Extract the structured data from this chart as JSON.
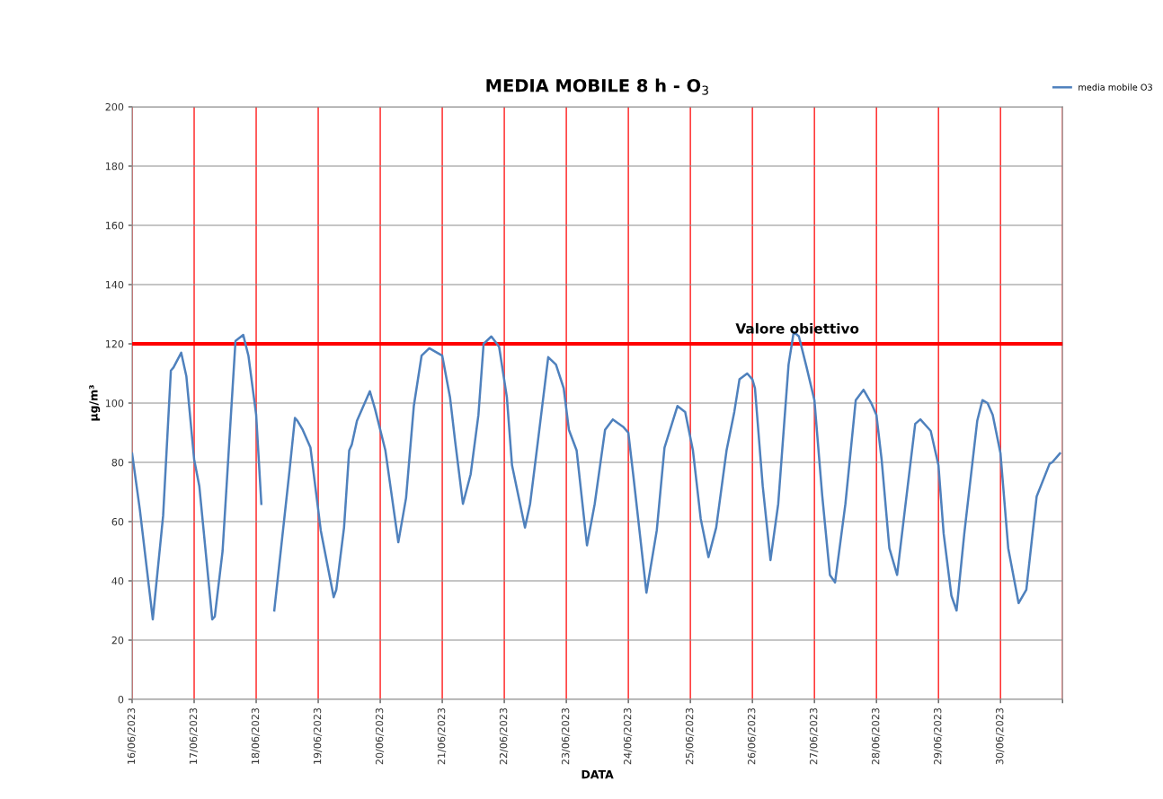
{
  "chart_data": {
    "type": "line",
    "title": "MEDIA MOBILE 8 h - O$_{3}$",
    "xlabel": "DATA",
    "ylabel": "µg/m³",
    "x": [
      "2023-06-16T00:00",
      "2023-06-16T03:00",
      "2023-06-16T08:00",
      "2023-06-16T12:00",
      "2023-06-16T15:00",
      "2023-06-16T16:00",
      "2023-06-16T19:00",
      "2023-06-16T21:00",
      "2023-06-17T00:00",
      "2023-06-17T02:00",
      "2023-06-17T07:00",
      "2023-06-17T08:00",
      "2023-06-17T11:00",
      "2023-06-17T16:00",
      "2023-06-17T19:00",
      "2023-06-17T21:00",
      "2023-06-18T00:00",
      "2023-06-18T02:00",
      "2023-06-18T04:00",
      "2023-06-18T07:00",
      "2023-06-18T13:00",
      "2023-06-18T15:00",
      "2023-06-18T16:00",
      "2023-06-18T18:00",
      "2023-06-18T21:00",
      "2023-06-18T22:00",
      "2023-06-19T01:00",
      "2023-06-19T06:00",
      "2023-06-19T07:00",
      "2023-06-19T10:00",
      "2023-06-19T12:00",
      "2023-06-19T13:00",
      "2023-06-19T15:00",
      "2023-06-19T17:00",
      "2023-06-19T20:00",
      "2023-06-19T22:00",
      "2023-06-20T02:00",
      "2023-06-20T07:00",
      "2023-06-20T10:00",
      "2023-06-20T13:00",
      "2023-06-20T16:00",
      "2023-06-20T19:00",
      "2023-06-20T22:00",
      "2023-06-21T00:00",
      "2023-06-21T03:00",
      "2023-06-21T05:00",
      "2023-06-21T08:00",
      "2023-06-21T11:00",
      "2023-06-21T14:00",
      "2023-06-21T16:00",
      "2023-06-21T19:00",
      "2023-06-21T22:00",
      "2023-06-22T01:00",
      "2023-06-22T03:00",
      "2023-06-22T08:00",
      "2023-06-22T10:00",
      "2023-06-22T13:00",
      "2023-06-22T17:00",
      "2023-06-22T20:00",
      "2023-06-22T23:00",
      "2023-06-23T01:00",
      "2023-06-23T04:00",
      "2023-06-23T08:00",
      "2023-06-23T11:00",
      "2023-06-23T15:00",
      "2023-06-23T18:00",
      "2023-06-23T22:00",
      "2023-06-24T00:00",
      "2023-06-24T02:00",
      "2023-06-24T07:00",
      "2023-06-24T11:00",
      "2023-06-24T14:00",
      "2023-06-24T19:00",
      "2023-06-24T22:00",
      "2023-06-25T01:00",
      "2023-06-25T04:00",
      "2023-06-25T07:00",
      "2023-06-25T10:00",
      "2023-06-25T14:00",
      "2023-06-25T17:00",
      "2023-06-25T19:00",
      "2023-06-25T22:00",
      "2023-06-26T00:00",
      "2023-06-26T01:00",
      "2023-06-26T04:00",
      "2023-06-26T07:00",
      "2023-06-26T10:00",
      "2023-06-26T14:00",
      "2023-06-26T16:00",
      "2023-06-26T18:00",
      "2023-06-26T21:00",
      "2023-06-27T00:00",
      "2023-06-27T03:00",
      "2023-06-27T06:00",
      "2023-06-27T08:00",
      "2023-06-27T12:00",
      "2023-06-27T16:00",
      "2023-06-27T19:00",
      "2023-06-27T22:00",
      "2023-06-28T00:00",
      "2023-06-28T02:00",
      "2023-06-28T05:00",
      "2023-06-28T08:00",
      "2023-06-28T11:00",
      "2023-06-28T15:00",
      "2023-06-28T17:00",
      "2023-06-28T21:00",
      "2023-06-29T00:00",
      "2023-06-29T02:00",
      "2023-06-29T05:00",
      "2023-06-29T07:00",
      "2023-06-29T10:00",
      "2023-06-29T15:00",
      "2023-06-29T17:00",
      "2023-06-29T19:00",
      "2023-06-29T21:00",
      "2023-06-30T00:00",
      "2023-06-30T03:00",
      "2023-06-30T07:00",
      "2023-06-30T10:00",
      "2023-06-30T14:00",
      "2023-06-30T19:00",
      "2023-06-30T20:00",
      "2023-06-30T23:00"
    ],
    "series": [
      {
        "name": "media mobile O3",
        "color": "#4f81bd",
        "values": [
          83,
          64,
          27,
          62,
          111,
          112,
          117,
          109,
          81,
          72,
          27,
          28,
          50,
          121,
          123,
          116,
          96,
          66,
          null,
          30,
          78,
          95,
          94,
          91,
          85,
          78,
          57,
          34.5,
          37,
          58,
          84,
          86,
          94,
          98,
          104,
          98,
          84,
          53,
          68,
          99,
          116,
          118.5,
          117,
          116,
          102,
          87,
          66,
          76,
          96,
          120,
          122.5,
          119,
          102,
          79,
          58,
          66,
          87,
          115.5,
          113,
          105,
          91,
          84,
          52,
          66,
          91,
          94.5,
          92,
          90,
          75,
          36,
          57,
          85,
          99,
          97,
          84,
          61,
          48,
          58,
          84,
          97,
          108,
          110,
          108,
          105,
          72,
          47,
          66,
          113,
          124,
          122.5,
          112,
          101,
          69,
          42,
          39.5,
          66,
          101,
          104.5,
          100,
          96,
          81,
          51,
          42,
          64,
          93,
          94.5,
          90.6,
          79,
          56,
          35,
          30,
          56,
          94,
          101,
          100,
          96,
          83,
          51,
          32.5,
          37,
          68.5,
          79.5,
          80,
          83
        ]
      }
    ],
    "xlim": [
      "2023-06-16",
      "2023-07-01"
    ],
    "xticks": [
      {
        "value": "2023-06-16",
        "label": "16/06/2023"
      },
      {
        "value": "2023-06-17",
        "label": "17/06/2023"
      },
      {
        "value": "2023-06-18",
        "label": "18/06/2023"
      },
      {
        "value": "2023-06-19",
        "label": "19/06/2023"
      },
      {
        "value": "2023-06-20",
        "label": "20/06/2023"
      },
      {
        "value": "2023-06-21",
        "label": "21/06/2023"
      },
      {
        "value": "2023-06-22",
        "label": "22/06/2023"
      },
      {
        "value": "2023-06-23",
        "label": "23/06/2023"
      },
      {
        "value": "2023-06-24",
        "label": "24/06/2023"
      },
      {
        "value": "2023-06-25",
        "label": "25/06/2023"
      },
      {
        "value": "2023-06-26",
        "label": "26/06/2023"
      },
      {
        "value": "2023-06-27",
        "label": "27/06/2023"
      },
      {
        "value": "2023-06-28",
        "label": "28/06/2023"
      },
      {
        "value": "2023-06-29",
        "label": "29/06/2023"
      },
      {
        "value": "2023-06-30",
        "label": "30/06/2023"
      },
      {
        "value": "2023-07-01",
        "label": null
      }
    ],
    "ylim": [
      0,
      200
    ],
    "yticks": [
      0,
      20,
      40,
      60,
      80,
      100,
      120,
      140,
      160,
      180,
      200
    ],
    "ref_lines": [
      {
        "axis": "y",
        "value": 120,
        "label": "Valore obiettivo",
        "color": "#ff0000"
      }
    ],
    "grid": true,
    "legend": "top right",
    "line_style": "solid",
    "marker": "none"
  }
}
